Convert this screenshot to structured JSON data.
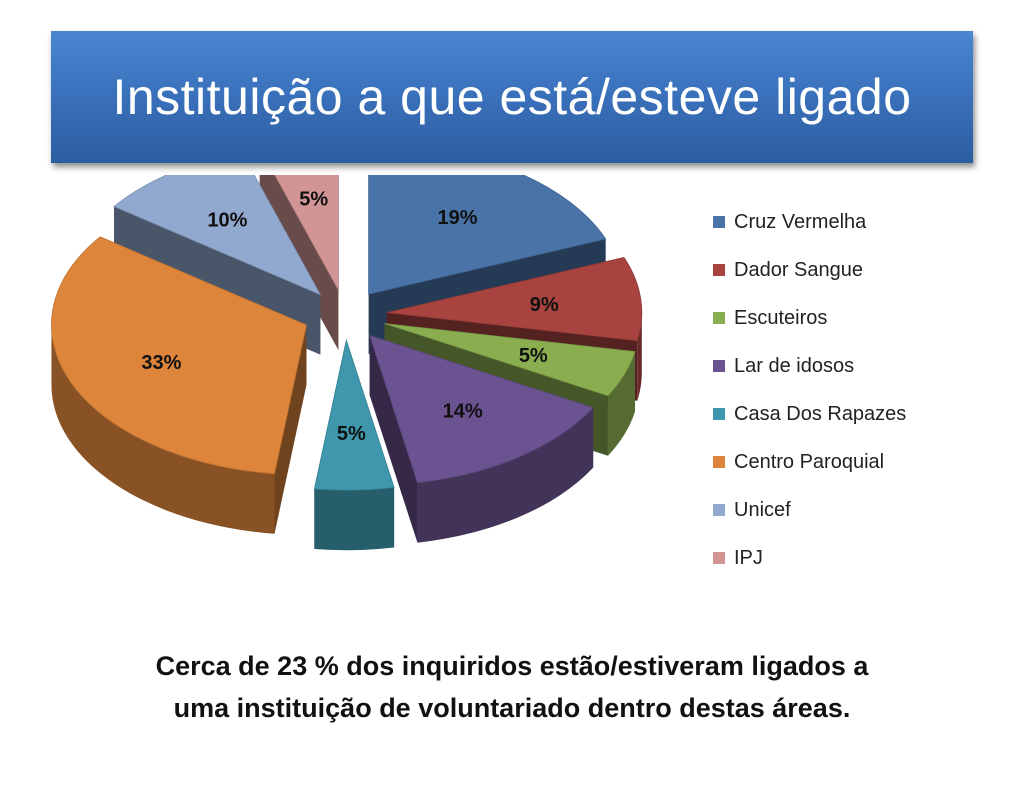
{
  "title": "Instituição a que está/esteve ligado",
  "chart_data": {
    "type": "pie",
    "title": "",
    "categories": [
      "Cruz Vermelha",
      "Dador Sangue",
      "Escuteiros",
      "Lar de idosos",
      "Casa Dos Rapazes",
      "Centro Paroquial",
      "Unicef",
      "IPJ"
    ],
    "values": [
      19,
      9,
      5,
      14,
      5,
      33,
      10,
      5
    ],
    "labels": [
      "19%",
      "9%",
      "5%",
      "14%",
      "5%",
      "33%",
      "10%",
      "5%"
    ],
    "colors": [
      "#4a74a8",
      "#a84340",
      "#8aad4f",
      "#6b5290",
      "#3e97ad",
      "#dd853a",
      "#92a9cf",
      "#d09594"
    ],
    "legend_position": "right",
    "style": "exploded 3D pie"
  },
  "caption": {
    "line1": "Cerca de 23 % dos inquiridos  estão/estiveram ligados a",
    "line2": "uma instituição de voluntariado dentro destas áreas."
  }
}
